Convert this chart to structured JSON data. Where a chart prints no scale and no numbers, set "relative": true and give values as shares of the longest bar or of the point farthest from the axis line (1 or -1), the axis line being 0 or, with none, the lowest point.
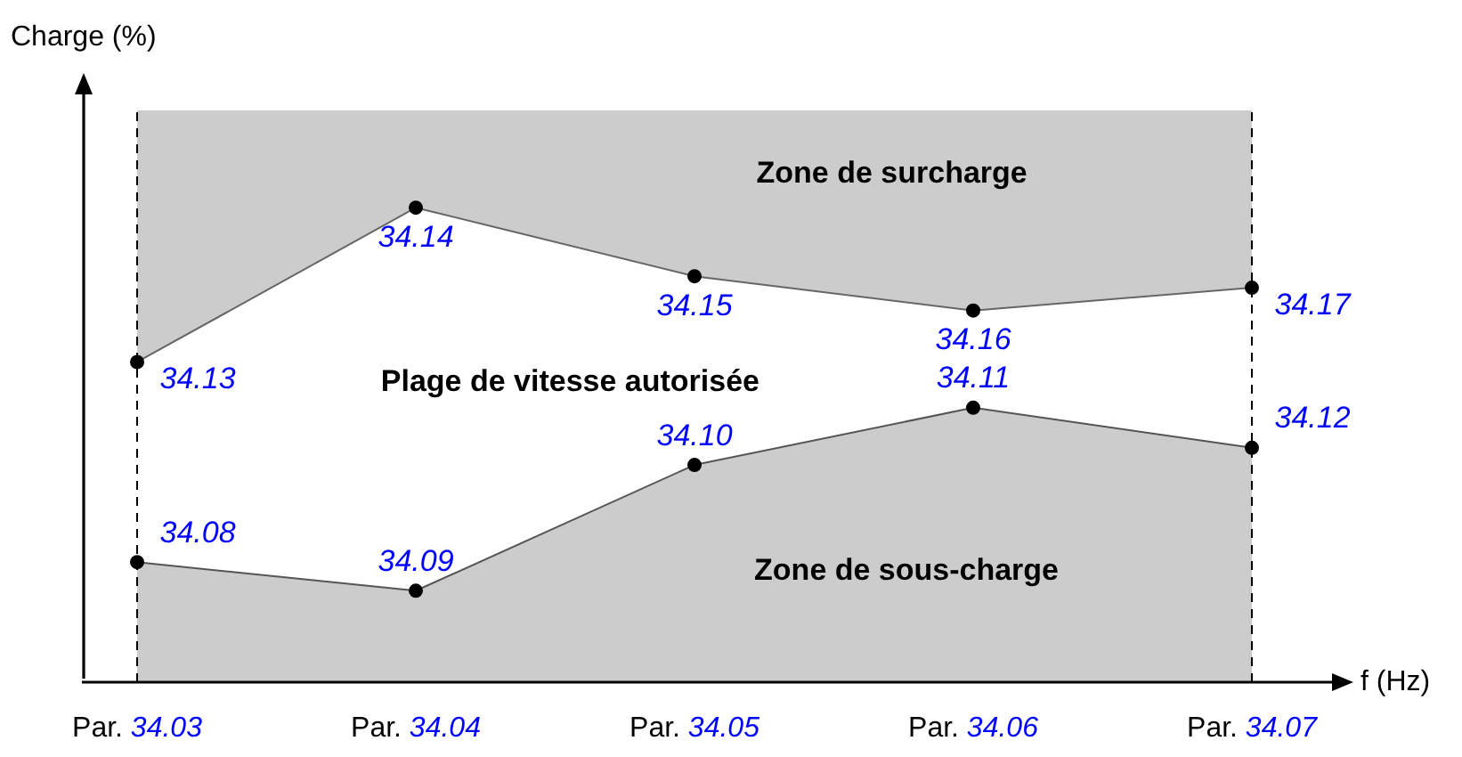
{
  "chart_data": {
    "type": "area",
    "relative": true,
    "xlabel": "f (Hz)",
    "ylabel": "Charge (%)",
    "categories": [
      "Par. 34.03",
      "Par. 34.04",
      "Par. 34.05",
      "Par. 34.06",
      "Par. 34.07"
    ],
    "series": [
      {
        "type": "area",
        "color": "#cccccc",
        "marker": "circle",
        "values": [
          0.21,
          0.16,
          0.38,
          0.48,
          0.41
        ]
      },
      {
        "type": "line",
        "color": "#666666",
        "marker": "circle",
        "values": [
          0.56,
          0.83,
          0.71,
          0.65,
          0.69
        ]
      },
      {
        "type": "area",
        "color": "#cccccc",
        "marker": "none",
        "values": [
          1,
          1,
          1,
          1,
          1
        ]
      }
    ],
    "ref_lines": [
      {
        "axis": "x",
        "value": "Par. 34.03",
        "line_style": "dashed"
      },
      {
        "axis": "x",
        "value": "Par. 34.07",
        "line_style": "dashed"
      }
    ],
    "annotations": [
      "Zone de surcharge",
      "Plage de vitesse autorisée",
      "Zone de sous-charge",
      {
        "text": "34.13",
        "x": "Par. 34.03",
        "y": 0.56
      },
      {
        "text": "34.14",
        "x": "Par. 34.04",
        "y": 0.83
      },
      {
        "text": "34.15",
        "x": "Par. 34.05",
        "y": 0.71
      },
      {
        "text": "34.16",
        "x": "Par. 34.06",
        "y": 0.65
      },
      {
        "text": "34.17",
        "x": "Par. 34.07",
        "y": 0.69
      },
      {
        "text": "34.08",
        "x": "Par. 34.03",
        "y": 0.21
      },
      {
        "text": "34.09",
        "x": "Par. 34.04",
        "y": 0.16
      },
      {
        "text": "34.10",
        "x": "Par. 34.05",
        "y": 0.38
      },
      {
        "text": "34.11",
        "x": "Par. 34.06",
        "y": 0.48
      },
      {
        "text": "34.12",
        "x": "Par. 34.07",
        "y": 0.41
      }
    ],
    "legend": false,
    "grid": false
  }
}
